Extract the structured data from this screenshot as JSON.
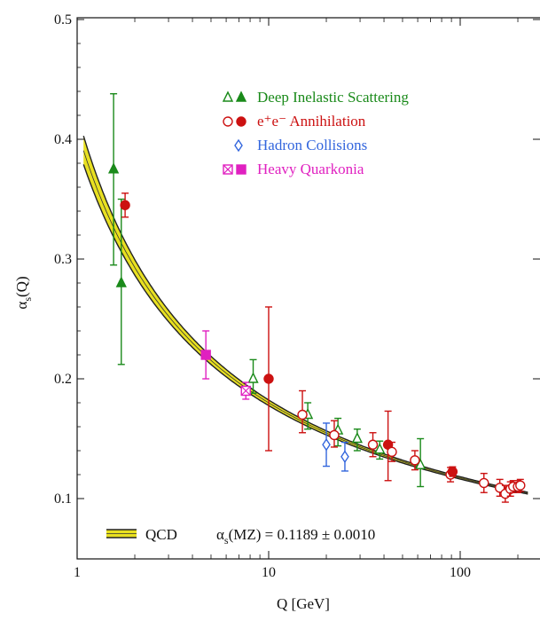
{
  "chart_data": {
    "type": "scatter",
    "xlabel": "Q [GeV]",
    "ylabel": "α_s(Q)",
    "xscale": "log",
    "xlim": [
      1,
      220
    ],
    "ylim": [
      0.07,
      0.5
    ],
    "xticks": [
      1,
      10,
      100
    ],
    "xtick_labels": [
      "1",
      "10",
      "100"
    ],
    "yticks": [
      0.1,
      0.2,
      0.3,
      0.4,
      0.5
    ],
    "ytick_labels": [
      "0.1",
      "0.2",
      "0.3",
      "0.4",
      "0.5"
    ],
    "legend_position": "top-center",
    "colors": {
      "dis": "#1a8a1a",
      "ee": "#cc1111",
      "hadron": "#3366dd",
      "quarkonia": "#e020c0",
      "band": "#e8e020",
      "curve": "#222222"
    },
    "series": [
      {
        "name": "Deep Inelastic Scattering",
        "symbols": "△▲",
        "color": "#1a8a1a",
        "points": [
          {
            "x": 1.55,
            "y": 0.375,
            "err_lo": 0.08,
            "err_hi": 0.063,
            "filled": true
          },
          {
            "x": 1.7,
            "y": 0.28,
            "err_lo": 0.068,
            "err_hi": 0.07,
            "filled": true
          },
          {
            "x": 8.3,
            "y": 0.2,
            "err_lo": 0.012,
            "err_hi": 0.016,
            "filled": false
          },
          {
            "x": 16,
            "y": 0.17,
            "err_lo": 0.012,
            "err_hi": 0.01,
            "filled": false
          },
          {
            "x": 23,
            "y": 0.157,
            "err_lo": 0.013,
            "err_hi": 0.01,
            "filled": false
          },
          {
            "x": 29,
            "y": 0.15,
            "err_lo": 0.01,
            "err_hi": 0.008,
            "filled": false
          },
          {
            "x": 38,
            "y": 0.141,
            "err_lo": 0.008,
            "err_hi": 0.007,
            "filled": false
          },
          {
            "x": 62,
            "y": 0.128,
            "err_lo": 0.018,
            "err_hi": 0.022,
            "filled": false
          }
        ]
      },
      {
        "name": "e⁺e⁻ Annihilation",
        "symbols": "○●",
        "color": "#cc1111",
        "points": [
          {
            "x": 1.78,
            "y": 0.345,
            "err_lo": 0.01,
            "err_hi": 0.01,
            "filled": true
          },
          {
            "x": 10,
            "y": 0.2,
            "err_lo": 0.06,
            "err_hi": 0.06,
            "filled": true
          },
          {
            "x": 15,
            "y": 0.17,
            "err_lo": 0.015,
            "err_hi": 0.02,
            "filled": false
          },
          {
            "x": 22,
            "y": 0.153,
            "err_lo": 0.01,
            "err_hi": 0.012,
            "filled": false
          },
          {
            "x": 35,
            "y": 0.145,
            "err_lo": 0.01,
            "err_hi": 0.01,
            "filled": false
          },
          {
            "x": 42,
            "y": 0.145,
            "err_lo": 0.03,
            "err_hi": 0.028,
            "filled": true
          },
          {
            "x": 44,
            "y": 0.139,
            "err_lo": 0.008,
            "err_hi": 0.008,
            "filled": false
          },
          {
            "x": 58,
            "y": 0.132,
            "err_lo": 0.008,
            "err_hi": 0.008,
            "filled": false
          },
          {
            "x": 89,
            "y": 0.12,
            "err_lo": 0.006,
            "err_hi": 0.006,
            "filled": false
          },
          {
            "x": 91.2,
            "y": 0.1225,
            "err_lo": 0.004,
            "err_hi": 0.004,
            "filled": true
          },
          {
            "x": 133,
            "y": 0.113,
            "err_lo": 0.008,
            "err_hi": 0.008,
            "filled": false
          },
          {
            "x": 161,
            "y": 0.109,
            "err_lo": 0.007,
            "err_hi": 0.007,
            "filled": false
          },
          {
            "x": 172,
            "y": 0.104,
            "err_lo": 0.007,
            "err_hi": 0.007,
            "filled": false
          },
          {
            "x": 183,
            "y": 0.108,
            "err_lo": 0.006,
            "err_hi": 0.006,
            "filled": false
          },
          {
            "x": 189,
            "y": 0.11,
            "err_lo": 0.005,
            "err_hi": 0.005,
            "filled": false
          },
          {
            "x": 200,
            "y": 0.11,
            "err_lo": 0.005,
            "err_hi": 0.005,
            "filled": false
          },
          {
            "x": 206,
            "y": 0.111,
            "err_lo": 0.005,
            "err_hi": 0.005,
            "filled": false
          }
        ]
      },
      {
        "name": "Hadron Collisions",
        "symbols": "◇",
        "color": "#3366dd",
        "points": [
          {
            "x": 20,
            "y": 0.145,
            "err_lo": 0.018,
            "err_hi": 0.018,
            "filled": false
          },
          {
            "x": 25,
            "y": 0.135,
            "err_lo": 0.012,
            "err_hi": 0.012,
            "filled": false
          }
        ]
      },
      {
        "name": "Heavy Quarkonia",
        "symbols": "⊠■",
        "color": "#e020c0",
        "points": [
          {
            "x": 4.7,
            "y": 0.22,
            "err_lo": 0.02,
            "err_hi": 0.02,
            "filled": true
          },
          {
            "x": 7.6,
            "y": 0.19,
            "err_lo": 0.007,
            "err_hi": 0.007,
            "filled": false
          }
        ]
      }
    ],
    "qcd_band": {
      "label": "QCD",
      "alpha_s_mz": 0.1189,
      "alpha_s_mz_err": 0.001,
      "mz": 91.19
    },
    "annotation": {
      "prefix": "α",
      "subscript": "s",
      "suffix": "(MZ) = 0.1189 ± 0.0010"
    }
  }
}
